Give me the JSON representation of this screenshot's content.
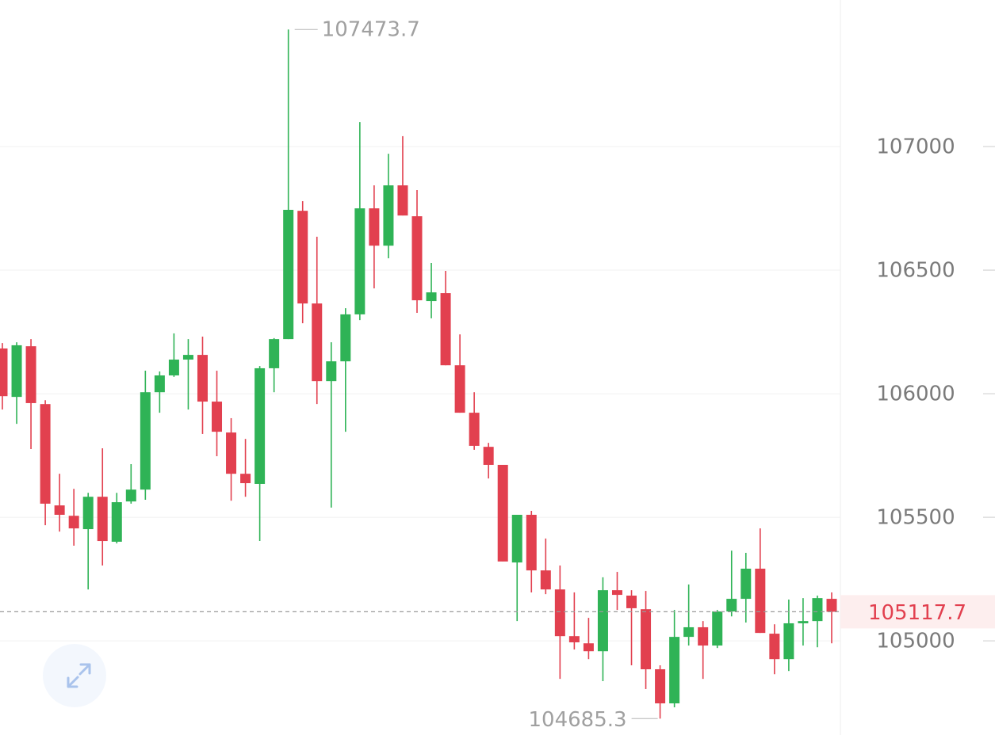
{
  "chart_data": {
    "type": "candlestick",
    "up_color": "#2fb356",
    "down_color": "#e2404f",
    "ylim": [
      104619,
      107593
    ],
    "yticks": [
      105000,
      105500,
      106000,
      106500,
      107000
    ],
    "grid": true,
    "open": [
      106183,
      105987,
      106192,
      105958,
      105548,
      105506,
      105452,
      105583,
      105401,
      105564,
      105612,
      106006,
      106074,
      106138,
      106157,
      105968,
      105843,
      105676,
      105635,
      106103,
      106221,
      106740,
      106365,
      106051,
      106131,
      106321,
      106750,
      106599,
      106843,
      106718,
      106375,
      106407,
      106115,
      105923,
      105785,
      105712,
      105317,
      105510,
      105285,
      105208,
      105019,
      104990,
      104958,
      105205,
      105183,
      105128,
      104885,
      104747,
      105016,
      105055,
      104981,
      105119,
      105170,
      105292,
      105029,
      104926,
      105071,
      105080,
      105170
    ],
    "high": [
      106205,
      106208,
      106221,
      105974,
      105676,
      105615,
      105599,
      105779,
      105599,
      105715,
      106093,
      106090,
      106244,
      106221,
      106231,
      106093,
      105901,
      105817,
      106112,
      106225,
      107473.7,
      106779,
      106635,
      106208,
      106346,
      107099,
      106843,
      106971,
      107042,
      106824,
      106529,
      106497,
      106240,
      106006,
      105801,
      105712,
      105510,
      105526,
      105414,
      105305,
      105196,
      105093,
      105257,
      105279,
      105205,
      105202,
      104901,
      105125,
      105228,
      105080,
      105125,
      105365,
      105356,
      105455,
      105067,
      105167,
      105173,
      105183,
      105196
    ],
    "low": [
      105936,
      105878,
      105776,
      105468,
      105442,
      105385,
      105208,
      105305,
      105394,
      105555,
      105571,
      105923,
      106068,
      105936,
      105837,
      105747,
      105567,
      105583,
      105404,
      106006,
      106221,
      106285,
      105958,
      105539,
      105846,
      106298,
      106426,
      106548,
      106721,
      106327,
      106305,
      106115,
      105923,
      105773,
      105657,
      105321,
      105080,
      105196,
      105189,
      104846,
      104965,
      104926,
      104837,
      105125,
      104901,
      104805,
      104685.3,
      104731,
      104981,
      104846,
      104971,
      105099,
      105074,
      105032,
      104865,
      104878,
      104981,
      104974,
      104990
    ],
    "close": [
      105990,
      106196,
      105962,
      105555,
      105510,
      105455,
      105583,
      105404,
      105561,
      105612,
      106006,
      106074,
      106138,
      106157,
      105968,
      105846,
      105676,
      105638,
      106103,
      106221,
      106744,
      106365,
      106051,
      106131,
      106321,
      106750,
      106599,
      106843,
      106721,
      106378,
      106410,
      106115,
      105923,
      105789,
      105712,
      105321,
      105510,
      105285,
      105208,
      105019,
      104994,
      104958,
      105205,
      105186,
      105132,
      104885,
      104747,
      105016,
      105055,
      104981,
      105119,
      105170,
      105292,
      105032,
      104926,
      105071,
      105080,
      105173,
      105117.7
    ]
  }
}
